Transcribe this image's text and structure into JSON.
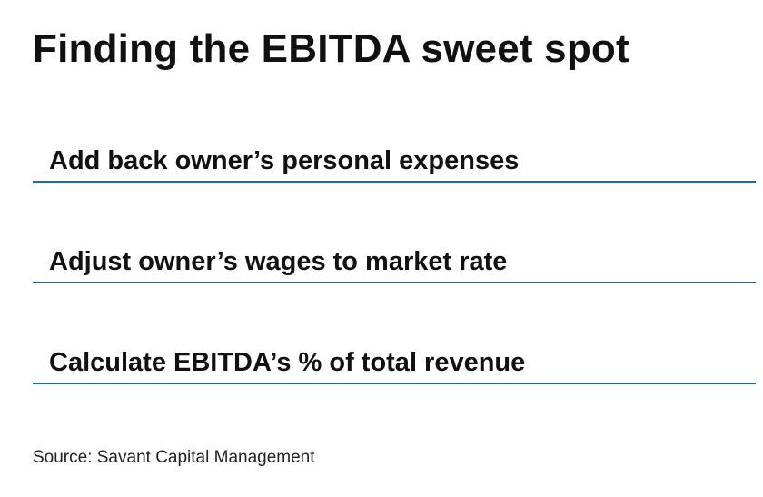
{
  "title": "Finding the EBITDA sweet spot",
  "steps": [
    {
      "label": "Add back owner’s personal expenses"
    },
    {
      "label": "Adjust owner’s wages to market rate"
    },
    {
      "label": "Calculate EBITDA’s % of total revenue"
    }
  ],
  "source": "Source: Savant Capital Management",
  "colors": {
    "rule": "#1a6bae",
    "text": "#111111"
  }
}
